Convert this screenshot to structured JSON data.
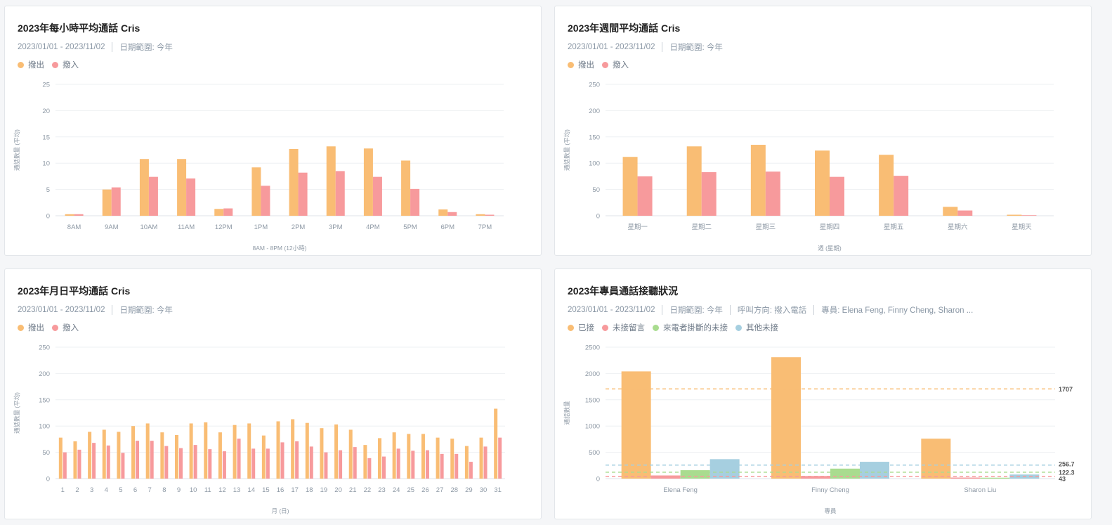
{
  "colors": {
    "orange": "#f9bd74",
    "pink": "#f79a9c",
    "green": "#a9dc8f",
    "blue": "#a6cfe0"
  },
  "charts": [
    {
      "title": "2023年每小時平均通話 Cris",
      "meta": [
        "2023/01/01 - 2023/11/02",
        "日期範圍: 今年"
      ],
      "legend": [
        {
          "label": "撥出",
          "color": "#f9bd74"
        },
        {
          "label": "撥入",
          "color": "#f79a9c"
        }
      ]
    },
    {
      "title": "2023年週間平均通話 Cris",
      "meta": [
        "2023/01/01 - 2023/11/02",
        "日期範圍: 今年"
      ],
      "legend": [
        {
          "label": "撥出",
          "color": "#f9bd74"
        },
        {
          "label": "撥入",
          "color": "#f79a9c"
        }
      ]
    },
    {
      "title": "2023年月日平均通話 Cris",
      "meta": [
        "2023/01/01 - 2023/11/02",
        "日期範圍: 今年"
      ],
      "legend": [
        {
          "label": "撥出",
          "color": "#f9bd74"
        },
        {
          "label": "撥入",
          "color": "#f79a9c"
        }
      ]
    },
    {
      "title": "2023年專員通話接聽狀況",
      "meta": [
        "2023/01/01 - 2023/11/02",
        "日期範圍: 今年",
        "呼叫方向: 撥入電話",
        "專員: Elena Feng, Finny Cheng, Sharon ..."
      ],
      "legend": [
        {
          "label": "已接",
          "color": "#f9bd74"
        },
        {
          "label": "未接留言",
          "color": "#f79a9c"
        },
        {
          "label": "來電者掛斷的未接",
          "color": "#a9dc8f"
        },
        {
          "label": "其他未接",
          "color": "#a6cfe0"
        }
      ]
    }
  ],
  "chart_data": [
    {
      "type": "bar",
      "title": "2023年每小時平均通話 Cris",
      "xlabel": "8AM - 8PM (12小時)",
      "ylabel": "通話數量 (平均)",
      "ylim": [
        0,
        25
      ],
      "yticks": [
        0,
        5,
        10,
        15,
        20,
        25
      ],
      "grid": true,
      "legend_position": "top-left",
      "categories": [
        "8AM",
        "9AM",
        "10AM",
        "11AM",
        "12PM",
        "1PM",
        "2PM",
        "3PM",
        "4PM",
        "5PM",
        "6PM",
        "7PM"
      ],
      "series": [
        {
          "name": "撥出",
          "color": "#f9bd74",
          "values": [
            0.3,
            5.0,
            10.8,
            10.8,
            1.3,
            9.2,
            12.7,
            13.2,
            12.8,
            10.5,
            1.2,
            0.3
          ]
        },
        {
          "name": "撥入",
          "color": "#f79a9c",
          "values": [
            0.3,
            5.4,
            7.4,
            7.1,
            1.4,
            5.7,
            8.2,
            8.5,
            7.4,
            5.1,
            0.7,
            0.2
          ]
        }
      ]
    },
    {
      "type": "bar",
      "title": "2023年週間平均通話 Cris",
      "xlabel": "週 (星期)",
      "ylabel": "通話數量 (平均)",
      "ylim": [
        0,
        250
      ],
      "yticks": [
        0,
        50,
        100,
        150,
        200,
        250
      ],
      "grid": true,
      "legend_position": "top-left",
      "categories": [
        "星期一",
        "星期二",
        "星期三",
        "星期四",
        "星期五",
        "星期六",
        "星期天"
      ],
      "series": [
        {
          "name": "撥出",
          "color": "#f9bd74",
          "values": [
            112,
            132,
            135,
            124,
            116,
            17,
            2
          ]
        },
        {
          "name": "撥入",
          "color": "#f79a9c",
          "values": [
            75,
            83,
            84,
            74,
            76,
            10,
            1
          ]
        }
      ]
    },
    {
      "type": "bar",
      "title": "2023年月日平均通話 Cris",
      "xlabel": "月 (日)",
      "ylabel": "通話數量 (平均)",
      "ylim": [
        0,
        250
      ],
      "yticks": [
        0,
        50,
        100,
        150,
        200,
        250
      ],
      "grid": true,
      "legend_position": "top-left",
      "categories": [
        "1",
        "2",
        "3",
        "4",
        "5",
        "6",
        "7",
        "8",
        "9",
        "10",
        "11",
        "12",
        "13",
        "14",
        "15",
        "16",
        "17",
        "18",
        "19",
        "20",
        "21",
        "22",
        "23",
        "24",
        "25",
        "26",
        "27",
        "28",
        "29",
        "30",
        "31"
      ],
      "series": [
        {
          "name": "撥出",
          "color": "#f9bd74",
          "values": [
            78,
            71,
            89,
            93,
            89,
            100,
            105,
            88,
            83,
            105,
            107,
            88,
            102,
            105,
            82,
            109,
            113,
            106,
            96,
            103,
            93,
            64,
            77,
            88,
            85,
            85,
            78,
            76,
            62,
            78,
            133
          ]
        },
        {
          "name": "撥入",
          "color": "#f79a9c",
          "values": [
            50,
            55,
            68,
            63,
            49,
            72,
            72,
            62,
            58,
            64,
            56,
            52,
            76,
            57,
            57,
            69,
            71,
            61,
            50,
            54,
            60,
            39,
            42,
            57,
            53,
            54,
            47,
            47,
            32,
            61,
            78
          ]
        }
      ]
    },
    {
      "type": "bar",
      "title": "2023年專員通話接聽狀況",
      "xlabel": "專員",
      "ylabel": "通話數量",
      "ylim": [
        0,
        2500
      ],
      "yticks": [
        0,
        500,
        1000,
        1500,
        2000,
        2500
      ],
      "grid": true,
      "legend_position": "top-left",
      "categories": [
        "Elena Feng",
        "Finny Cheng",
        "Sharon Liu"
      ],
      "series": [
        {
          "name": "已接",
          "color": "#f9bd74",
          "values": [
            2040,
            2310,
            760
          ]
        },
        {
          "name": "未接留言",
          "color": "#f79a9c",
          "values": [
            60,
            50,
            20
          ]
        },
        {
          "name": "來電者掛斷的未接",
          "color": "#a9dc8f",
          "values": [
            160,
            190,
            17
          ]
        },
        {
          "name": "其他未接",
          "color": "#a6cfe0",
          "values": [
            370,
            320,
            78
          ]
        }
      ],
      "reference_lines": [
        {
          "label": "1707",
          "value": 1707,
          "color": "#f9bd74"
        },
        {
          "label": "256.7",
          "value": 256.7,
          "color": "#a6cfe0"
        },
        {
          "label": "122.3",
          "value": 122.3,
          "color": "#a9dc8f"
        },
        {
          "label": "43",
          "value": 43,
          "color": "#f79a9c"
        }
      ]
    }
  ]
}
